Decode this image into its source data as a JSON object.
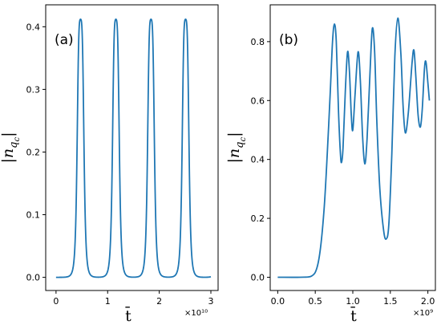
{
  "chart_data": [
    {
      "panel": "(a)",
      "type": "line",
      "xlabel": "t̄",
      "ylabel": "|n_qc|",
      "x_multiplier": "×10¹⁰",
      "xlim": [
        -0.2,
        3.14
      ],
      "ylim": [
        -0.021,
        0.435
      ],
      "x_ticks": [
        0,
        1,
        2,
        3
      ],
      "x_tick_labels": [
        "0",
        "1",
        "2",
        "3"
      ],
      "y_ticks": [
        0.0,
        0.1,
        0.2,
        0.3,
        0.4
      ],
      "y_tick_labels": [
        "0.0",
        "0.1",
        "0.2",
        "0.3",
        "0.4"
      ],
      "grid": false,
      "peaks": {
        "centers": [
          0.475,
          1.16,
          1.84,
          2.51
        ],
        "heights": [
          0.412,
          0.412,
          0.412,
          0.412
        ],
        "width": 0.07,
        "baseline": 0.0,
        "x_range": [
          0,
          3.0
        ],
        "end_value": 0.012
      },
      "color": "#1f77b4"
    },
    {
      "panel": "(b)",
      "type": "line",
      "xlabel": "t̄",
      "ylabel": "|n_qc|",
      "x_multiplier": "×10⁹",
      "xlim": [
        -0.1,
        2.1
      ],
      "ylim": [
        -0.045,
        0.925
      ],
      "x_ticks": [
        0.0,
        0.5,
        1.0,
        1.5,
        2.0
      ],
      "x_tick_labels": [
        "0.0",
        "0.5",
        "1.0",
        "1.5",
        "2.0"
      ],
      "y_ticks": [
        0.0,
        0.2,
        0.4,
        0.6,
        0.8
      ],
      "y_tick_labels": [
        "0.0",
        "0.2",
        "0.4",
        "0.6",
        "0.8"
      ],
      "grid": false,
      "points": [
        [
          0.0,
          0.0
        ],
        [
          0.3,
          0.0
        ],
        [
          0.45,
          0.004
        ],
        [
          0.52,
          0.03
        ],
        [
          0.57,
          0.1
        ],
        [
          0.62,
          0.24
        ],
        [
          0.66,
          0.42
        ],
        [
          0.7,
          0.63
        ],
        [
          0.73,
          0.8
        ],
        [
          0.755,
          0.86
        ],
        [
          0.78,
          0.8
        ],
        [
          0.81,
          0.56
        ],
        [
          0.835,
          0.42
        ],
        [
          0.85,
          0.39
        ],
        [
          0.87,
          0.44
        ],
        [
          0.9,
          0.63
        ],
        [
          0.93,
          0.765
        ],
        [
          0.955,
          0.7
        ],
        [
          0.98,
          0.55
        ],
        [
          1.0,
          0.5
        ],
        [
          1.03,
          0.62
        ],
        [
          1.07,
          0.765
        ],
        [
          1.1,
          0.67
        ],
        [
          1.13,
          0.48
        ],
        [
          1.16,
          0.385
        ],
        [
          1.19,
          0.47
        ],
        [
          1.23,
          0.7
        ],
        [
          1.26,
          0.845
        ],
        [
          1.29,
          0.77
        ],
        [
          1.32,
          0.53
        ],
        [
          1.36,
          0.3
        ],
        [
          1.41,
          0.16
        ],
        [
          1.445,
          0.13
        ],
        [
          1.48,
          0.18
        ],
        [
          1.52,
          0.42
        ],
        [
          1.56,
          0.75
        ],
        [
          1.6,
          0.88
        ],
        [
          1.64,
          0.76
        ],
        [
          1.67,
          0.58
        ],
        [
          1.7,
          0.49
        ],
        [
          1.74,
          0.56
        ],
        [
          1.79,
          0.73
        ],
        [
          1.815,
          0.77
        ],
        [
          1.84,
          0.68
        ],
        [
          1.87,
          0.55
        ],
        [
          1.9,
          0.51
        ],
        [
          1.925,
          0.57
        ],
        [
          1.955,
          0.71
        ],
        [
          1.975,
          0.73
        ],
        [
          2.0,
          0.66
        ],
        [
          2.02,
          0.6
        ]
      ],
      "color": "#1f77b4"
    }
  ]
}
